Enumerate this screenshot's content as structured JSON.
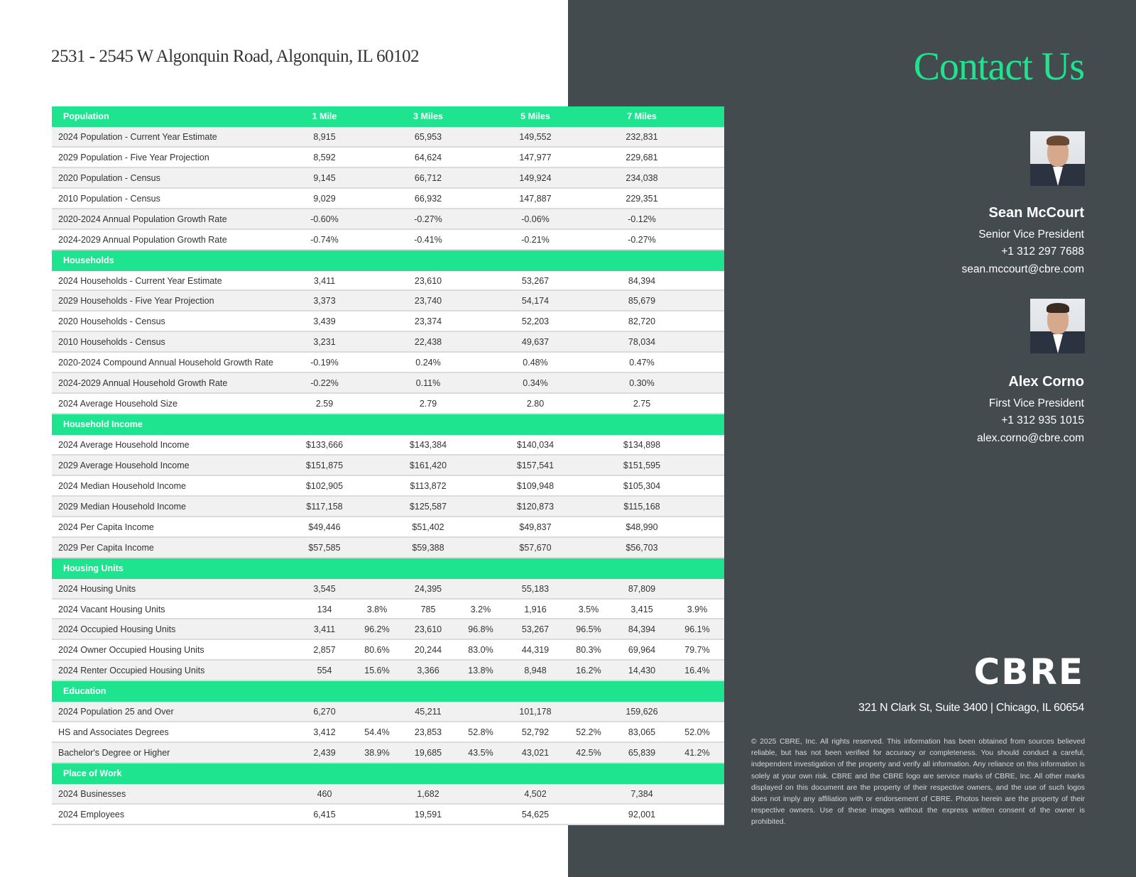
{
  "title": "2531 - 2545 W Algonquin Road, Algonquin, IL 60102",
  "table": {
    "columns": [
      "1 Mile",
      "3 Miles",
      "5 Miles",
      "7 Miles"
    ],
    "sections": [
      {
        "name": "Population",
        "rows": [
          {
            "label": "2024 Population - Current Year Estimate",
            "v": [
              "8,915",
              "65,953",
              "149,552",
              "232,831"
            ]
          },
          {
            "label": "2029 Population -  Five Year Projection",
            "v": [
              "8,592",
              "64,624",
              "147,977",
              "229,681"
            ]
          },
          {
            "label": "2020 Population - Census",
            "v": [
              "9,145",
              "66,712",
              "149,924",
              "234,038"
            ]
          },
          {
            "label": "2010 Population - Census",
            "v": [
              "9,029",
              "66,932",
              "147,887",
              "229,351"
            ]
          },
          {
            "label": "2020-2024 Annual Population Growth Rate",
            "v": [
              "-0.60%",
              "-0.27%",
              "-0.06%",
              "-0.12%"
            ]
          },
          {
            "label": "2024-2029 Annual Population Growth Rate",
            "v": [
              "-0.74%",
              "-0.41%",
              "-0.21%",
              "-0.27%"
            ]
          }
        ]
      },
      {
        "name": "Households",
        "rows": [
          {
            "label": "2024 Households - Current Year Estimate",
            "v": [
              "3,411",
              "23,610",
              "53,267",
              "84,394"
            ]
          },
          {
            "label": "2029 Households -  Five Year Projection",
            "v": [
              "3,373",
              "23,740",
              "54,174",
              "85,679"
            ]
          },
          {
            "label": "2020 Households - Census",
            "v": [
              "3,439",
              "23,374",
              "52,203",
              "82,720"
            ]
          },
          {
            "label": "2010 Households - Census",
            "v": [
              "3,231",
              "22,438",
              "49,637",
              "78,034"
            ]
          },
          {
            "label": "2020-2024 Compound Annual Household Growth Rate",
            "v": [
              "-0.19%",
              "0.24%",
              "0.48%",
              "0.47%"
            ]
          },
          {
            "label": "2024-2029 Annual Household Growth Rate",
            "v": [
              "-0.22%",
              "0.11%",
              "0.34%",
              "0.30%"
            ]
          },
          {
            "label": "2024 Average Household Size",
            "v": [
              "2.59",
              "2.79",
              "2.80",
              "2.75"
            ]
          }
        ]
      },
      {
        "name": "Household Income",
        "rows": [
          {
            "label": "2024 Average Household Income",
            "v": [
              "$133,666",
              "$143,384",
              "$140,034",
              "$134,898"
            ]
          },
          {
            "label": "2029 Average Household Income",
            "v": [
              "$151,875",
              "$161,420",
              "$157,541",
              "$151,595"
            ]
          },
          {
            "label": "2024 Median Household Income",
            "v": [
              "$102,905",
              "$113,872",
              "$109,948",
              "$105,304"
            ]
          },
          {
            "label": "2029 Median Household Income",
            "v": [
              "$117,158",
              "$125,587",
              "$120,873",
              "$115,168"
            ]
          },
          {
            "label": "2024 Per Capita Income",
            "v": [
              "$49,446",
              "$51,402",
              "$49,837",
              "$48,990"
            ]
          },
          {
            "label": "2029 Per Capita Income",
            "v": [
              "$57,585",
              "$59,388",
              "$57,670",
              "$56,703"
            ]
          }
        ]
      },
      {
        "name": "Housing Units",
        "rows": [
          {
            "label": "2024 Housing Units",
            "v": [
              "3,545",
              "24,395",
              "55,183",
              "87,809"
            ]
          },
          {
            "label": "2024 Vacant Housing Units",
            "v": [
              "134",
              "785",
              "1,916",
              "3,415"
            ],
            "p": [
              "3.8%",
              "3.2%",
              "3.5%",
              "3.9%"
            ]
          },
          {
            "label": "2024 Occupied Housing Units",
            "v": [
              "3,411",
              "23,610",
              "53,267",
              "84,394"
            ],
            "p": [
              "96.2%",
              "96.8%",
              "96.5%",
              "96.1%"
            ]
          },
          {
            "label": "2024 Owner Occupied Housing Units",
            "v": [
              "2,857",
              "20,244",
              "44,319",
              "69,964"
            ],
            "p": [
              "80.6%",
              "83.0%",
              "80.3%",
              "79.7%"
            ]
          },
          {
            "label": "2024 Renter Occupied Housing Units",
            "v": [
              "554",
              "3,366",
              "8,948",
              "14,430"
            ],
            "p": [
              "15.6%",
              "13.8%",
              "16.2%",
              "16.4%"
            ]
          }
        ]
      },
      {
        "name": "Education",
        "rows": [
          {
            "label": "2024 Population 25 and Over",
            "v": [
              "6,270",
              "45,211",
              "101,178",
              "159,626"
            ]
          },
          {
            "label": "HS and Associates Degrees",
            "v": [
              "3,412",
              "23,853",
              "52,792",
              "83,065"
            ],
            "p": [
              "54.4%",
              "52.8%",
              "52.2%",
              "52.0%"
            ]
          },
          {
            "label": "Bachelor's Degree or Higher",
            "v": [
              "2,439",
              "19,685",
              "43,021",
              "65,839"
            ],
            "p": [
              "38.9%",
              "43.5%",
              "42.5%",
              "41.2%"
            ]
          }
        ]
      },
      {
        "name": "Place of Work",
        "rows": [
          {
            "label": "2024 Businesses",
            "v": [
              "460",
              "1,682",
              "4,502",
              "7,384"
            ]
          },
          {
            "label": "2024 Employees",
            "v": [
              "6,415",
              "19,591",
              "54,625",
              "92,001"
            ]
          }
        ]
      }
    ]
  },
  "contact": {
    "heading": "Contact Us",
    "people": [
      {
        "name": "Sean McCourt",
        "title": "Senior Vice President",
        "phone": "+1 312 297 7688",
        "email": "sean.mccourt@cbre.com"
      },
      {
        "name": "Alex Corno",
        "title": "First Vice President",
        "phone": "+1 312 935 1015",
        "email": "alex.corno@cbre.com"
      }
    ]
  },
  "logo": "CBRE",
  "address": "321 N Clark St, Suite 3400 | Chicago, IL 60654",
  "disclaimer": "© 2025 CBRE, Inc. All rights reserved. This information has been obtained from sources believed reliable, but has not been verified for accuracy or completeness. You should conduct a careful, independent investigation of the property and verify all information. Any reliance on this information is solely at your own risk. CBRE and the CBRE logo are service marks of CBRE, Inc. All other marks displayed on this document are the property of their respective owners, and the use of such logos does not imply any affiliation with or endorsement of CBRE. Photos herein are the property of their respective owners. Use of these images without the express written consent of the owner is prohibited.",
  "colors": {
    "accent": "#1ee38f",
    "panel": "#434b4f"
  }
}
